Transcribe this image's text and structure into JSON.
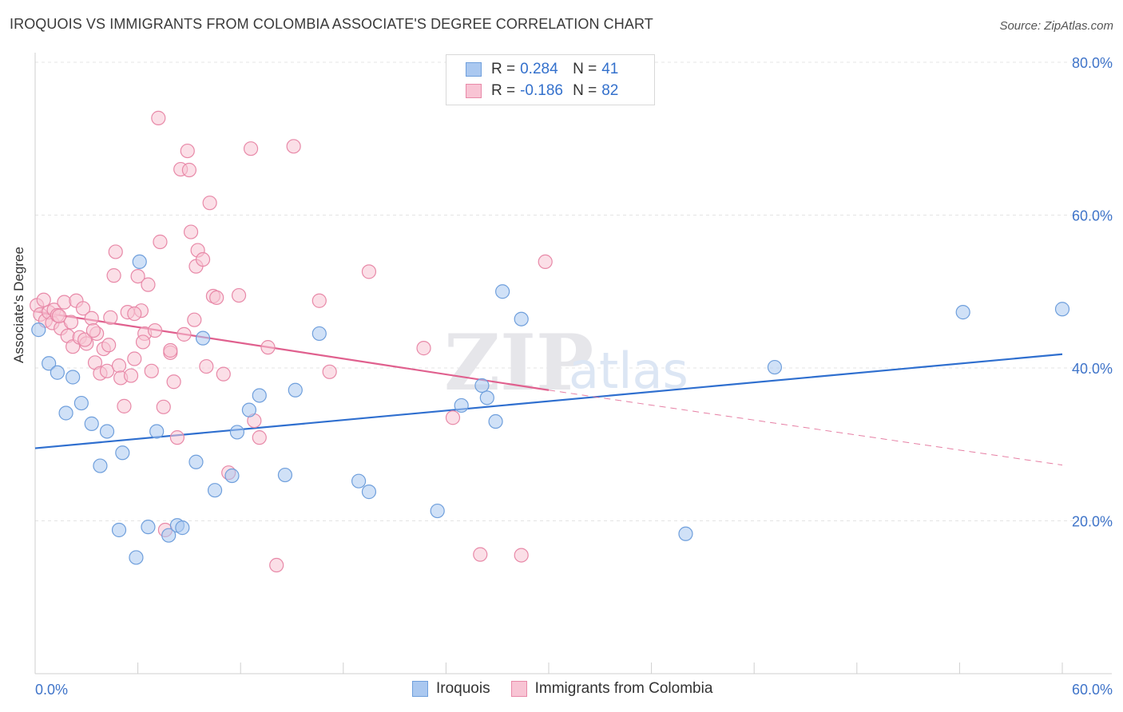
{
  "header": {
    "title": "IROQUOIS VS IMMIGRANTS FROM COLOMBIA ASSOCIATE'S DEGREE CORRELATION CHART",
    "source": "Source: ZipAtlas.com"
  },
  "watermark": {
    "big": "ZIP",
    "small": "atlas"
  },
  "stats": [
    {
      "r_label": "R =",
      "r_value": "0.284",
      "n_label": "N =",
      "n_value": "41",
      "color": "#aac8f0",
      "border": "#6f9fdc"
    },
    {
      "r_label": "R =",
      "r_value": "-0.186",
      "n_label": "N =",
      "n_value": "82",
      "color": "#f8c4d4",
      "border": "#e889a8"
    }
  ],
  "chart_data": {
    "type": "scatter",
    "title": "IROQUOIS VS IMMIGRANTS FROM COLOMBIA ASSOCIATE'S DEGREE CORRELATION CHART",
    "xlabel": "",
    "ylabel": "Associate's Degree",
    "xlim": [
      0,
      60
    ],
    "ylim": [
      0,
      80
    ],
    "x_tick_labels": [
      "0.0%",
      "60.0%"
    ],
    "y_ticks": [
      20,
      40,
      60,
      80
    ],
    "y_tick_labels": [
      "20.0%",
      "40.0%",
      "60.0%",
      "80.0%"
    ],
    "grid": true,
    "legend_position": "bottom",
    "series": [
      {
        "name": "Iroquois",
        "color": "#6f9fdc",
        "fill": "#aac8f0",
        "trend": {
          "x": [
            0,
            60
          ],
          "y": [
            29.5,
            41.8
          ],
          "color": "#2f6fcf"
        },
        "points": [
          [
            0.2,
            45.0
          ],
          [
            0.8,
            40.6
          ],
          [
            1.3,
            39.4
          ],
          [
            1.8,
            34.1
          ],
          [
            2.2,
            38.8
          ],
          [
            2.7,
            35.4
          ],
          [
            3.3,
            32.7
          ],
          [
            3.8,
            27.2
          ],
          [
            4.2,
            31.7
          ],
          [
            4.9,
            18.8
          ],
          [
            5.1,
            28.9
          ],
          [
            5.9,
            15.2
          ],
          [
            6.1,
            53.9
          ],
          [
            6.6,
            19.2
          ],
          [
            7.1,
            31.7
          ],
          [
            7.8,
            18.1
          ],
          [
            8.3,
            19.4
          ],
          [
            8.6,
            19.1
          ],
          [
            9.4,
            27.7
          ],
          [
            9.8,
            43.9
          ],
          [
            10.5,
            24.0
          ],
          [
            11.5,
            25.9
          ],
          [
            11.8,
            31.6
          ],
          [
            12.5,
            34.5
          ],
          [
            13.1,
            36.4
          ],
          [
            14.6,
            26.0
          ],
          [
            15.2,
            37.1
          ],
          [
            16.6,
            44.5
          ],
          [
            18.9,
            25.2
          ],
          [
            19.5,
            23.8
          ],
          [
            23.5,
            21.3
          ],
          [
            24.9,
            35.1
          ],
          [
            26.1,
            37.7
          ],
          [
            26.4,
            36.1
          ],
          [
            26.9,
            33.0
          ],
          [
            27.3,
            50.0
          ],
          [
            28.4,
            46.4
          ],
          [
            38.0,
            18.3
          ],
          [
            43.2,
            40.1
          ],
          [
            54.2,
            47.3
          ],
          [
            60.0,
            47.7
          ]
        ]
      },
      {
        "name": "Immigrants from Colombia",
        "color": "#e889a8",
        "fill": "#f8c4d4",
        "trend": {
          "x": [
            0,
            30
          ],
          "y": [
            47.4,
            37.1
          ],
          "color": "#e0608e"
        },
        "trend_extension": {
          "x": [
            30,
            60
          ],
          "y": [
            37.1,
            27.3
          ]
        },
        "points": [
          [
            0.1,
            48.2
          ],
          [
            0.3,
            47.0
          ],
          [
            0.5,
            48.9
          ],
          [
            0.6,
            46.2
          ],
          [
            0.8,
            47.3
          ],
          [
            1.0,
            45.9
          ],
          [
            1.1,
            47.6
          ],
          [
            1.3,
            46.9
          ],
          [
            1.5,
            45.2
          ],
          [
            1.7,
            48.6
          ],
          [
            1.9,
            44.2
          ],
          [
            2.1,
            46.0
          ],
          [
            2.2,
            42.8
          ],
          [
            2.4,
            48.8
          ],
          [
            2.6,
            44.0
          ],
          [
            2.8,
            47.8
          ],
          [
            3.0,
            43.2
          ],
          [
            3.3,
            46.5
          ],
          [
            3.5,
            40.7
          ],
          [
            3.6,
            44.5
          ],
          [
            3.8,
            39.3
          ],
          [
            4.0,
            42.5
          ],
          [
            4.2,
            39.6
          ],
          [
            4.4,
            46.6
          ],
          [
            4.6,
            52.1
          ],
          [
            4.7,
            55.2
          ],
          [
            4.9,
            40.3
          ],
          [
            5.0,
            38.7
          ],
          [
            5.2,
            35.0
          ],
          [
            5.4,
            47.3
          ],
          [
            5.6,
            39.0
          ],
          [
            5.8,
            41.2
          ],
          [
            6.0,
            52.0
          ],
          [
            6.2,
            47.5
          ],
          [
            6.4,
            44.5
          ],
          [
            6.6,
            50.9
          ],
          [
            6.8,
            39.6
          ],
          [
            7.0,
            44.9
          ],
          [
            7.2,
            72.7
          ],
          [
            7.3,
            56.5
          ],
          [
            7.5,
            34.9
          ],
          [
            7.6,
            18.8
          ],
          [
            7.9,
            42.0
          ],
          [
            8.1,
            38.2
          ],
          [
            8.3,
            30.9
          ],
          [
            8.5,
            66.0
          ],
          [
            8.7,
            44.4
          ],
          [
            8.9,
            68.4
          ],
          [
            9.1,
            57.8
          ],
          [
            9.3,
            46.3
          ],
          [
            9.4,
            53.3
          ],
          [
            9.5,
            55.4
          ],
          [
            9.8,
            54.2
          ],
          [
            10.0,
            40.2
          ],
          [
            10.2,
            61.6
          ],
          [
            10.4,
            49.4
          ],
          [
            10.6,
            49.2
          ],
          [
            11.0,
            39.2
          ],
          [
            11.3,
            26.3
          ],
          [
            12.6,
            68.7
          ],
          [
            12.8,
            33.1
          ],
          [
            13.1,
            30.9
          ],
          [
            14.1,
            14.2
          ],
          [
            15.1,
            69.0
          ],
          [
            16.6,
            48.8
          ],
          [
            17.2,
            39.5
          ],
          [
            19.5,
            52.6
          ],
          [
            22.7,
            42.6
          ],
          [
            24.4,
            33.5
          ],
          [
            26.0,
            15.6
          ],
          [
            28.4,
            15.5
          ],
          [
            29.8,
            53.9
          ],
          [
            1.4,
            46.8
          ],
          [
            2.9,
            43.7
          ],
          [
            3.4,
            44.9
          ],
          [
            4.3,
            43.0
          ],
          [
            5.8,
            47.1
          ],
          [
            6.3,
            43.4
          ],
          [
            7.9,
            42.3
          ],
          [
            9.0,
            65.9
          ],
          [
            11.9,
            49.5
          ],
          [
            13.6,
            42.7
          ]
        ]
      }
    ]
  }
}
